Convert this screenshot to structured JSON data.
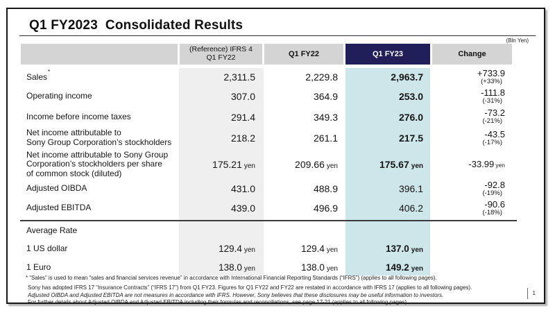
{
  "slide": {
    "title": "Q1 FY2023  Consolidated Results",
    "unit_label": "(Bln Yen)",
    "page_number": "1"
  },
  "colors": {
    "accent_navy": "#211F5A",
    "highlight_teal": "#CDE6E9",
    "header_gray": "#D4D4D4",
    "reference_column_gray": "#EFEFEF"
  },
  "table": {
    "note_symbol": "*",
    "headers": {
      "ref": "(Reference) IFRS 4\nQ1 FY22",
      "fy22": "Q1 FY22",
      "fy23": "Q1 FY23",
      "change": "Change"
    },
    "rows": [
      {
        "label": "Sales",
        "ref": "2,311.5",
        "fy22": "2,229.8",
        "fy23": "2,963.7",
        "change": "+733.9",
        "change_pct": "(+33%)"
      },
      {
        "label": "Operating income",
        "ref": "307.0",
        "fy22": "364.9",
        "fy23": "253.0",
        "change": "-111.8",
        "change_pct": "(-31%)"
      },
      {
        "label": "Income before income taxes",
        "ref": "291.4",
        "fy22": "349.3",
        "fy23": "276.0",
        "change": "-73.2",
        "change_pct": "(-21%)"
      },
      {
        "label": "Net income attributable to\nSony Group Corporation’s stockholders",
        "ref": "218.2",
        "fy22": "261.1",
        "fy23": "217.5",
        "change": "-43.5",
        "change_pct": "(-17%)"
      },
      {
        "label": "Net income attributable to Sony Group\nCorporation’s stockholders per share\nof common stock (diluted)",
        "ref": "175.21",
        "ref_unit": "yen",
        "fy22": "209.66",
        "fy22_unit": "yen",
        "fy23": "175.67",
        "fy23_unit": "yen",
        "change": "-33.99",
        "change_unit": "yen"
      },
      {
        "label": "Adjusted OIBDA",
        "ref": "431.0",
        "fy22": "488.9",
        "fy23": "396.1",
        "change": "-92.8",
        "change_pct": "(-19%)"
      },
      {
        "label": "Adjusted EBITDA",
        "ref": "439.0",
        "fy22": "496.9",
        "fy23": "406.2",
        "change": "-90.6",
        "change_pct": "(-18%)"
      }
    ],
    "average_rate": {
      "section_label": "Average Rate",
      "rows": [
        {
          "label": "1 US dollar",
          "ref": "129.4",
          "ref_unit": "yen",
          "fy22": "129.4",
          "fy22_unit": "yen",
          "fy23": "137.0",
          "fy23_unit": "yen"
        },
        {
          "label": "1 Euro",
          "ref": "138.0",
          "ref_unit": "yen",
          "fy22": "138.0",
          "fy22_unit": "yen",
          "fy23": "149.2",
          "fy23_unit": "yen"
        }
      ]
    }
  },
  "footnotes": {
    "line1": "* “Sales” is used to mean “sales and financial services revenue” in accordance with International Financial Reporting Standards (“IFRS”) (applies to all following pages).",
    "line2": "Sony has adopted IFRS 17 “Insurance Contracts” (“IFRS 17”) from Q1 FY23. Figures for Q1 FY22 and FY22 are restated in accordance with IFRS 17 (applies to all following pages).",
    "line3": "Adjusted OIBDA and Adjusted EBITDA are not measures in accordance with IFRS. However, Sony believes that these disclosures may be useful information to investors.",
    "line4": "For further details about Adjusted OIBDA and Adjusted EBITDA including their formulas and reconciliations, see page 17-21 (applies to all following pages)."
  }
}
